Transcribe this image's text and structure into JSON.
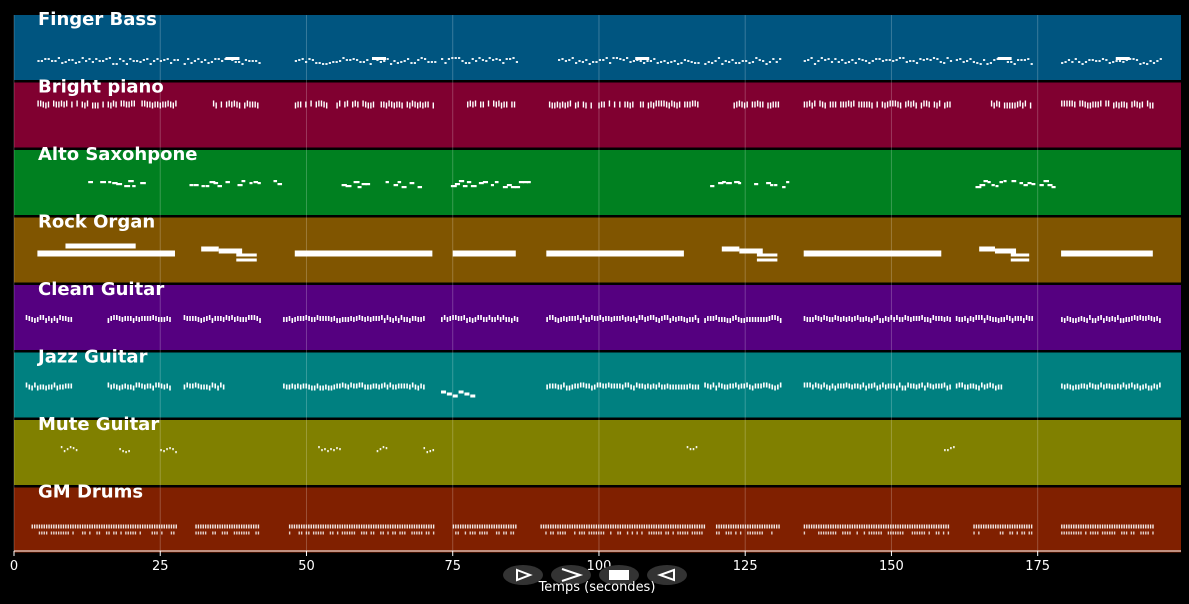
{
  "app": {
    "xlabel": "Temps (secondes)",
    "xlim": [
      0,
      199.5
    ],
    "x_ticks": [
      0,
      25,
      50,
      75,
      100,
      125,
      150,
      175
    ],
    "grid": true,
    "background": "#000000"
  },
  "tracks": [
    {
      "name": "Finger Bass",
      "color": "#005580",
      "pattern": "bass"
    },
    {
      "name": "Bright piano",
      "color": "#800030",
      "pattern": "piano"
    },
    {
      "name": "Alto Saxohpone",
      "color": "#008020",
      "pattern": "sax"
    },
    {
      "name": "Rock Organ",
      "color": "#805500",
      "pattern": "organ"
    },
    {
      "name": "Clean Guitar",
      "color": "#550080",
      "pattern": "guitar"
    },
    {
      "name": "Jazz Guitar",
      "color": "#008080",
      "pattern": "jazz"
    },
    {
      "name": "Mute Guitar",
      "color": "#808000",
      "pattern": "mute"
    },
    {
      "name": "GM Drums",
      "color": "#802000",
      "pattern": "drums"
    }
  ],
  "sections": {
    "bass": [
      [
        4,
        28
      ],
      [
        29,
        42
      ],
      [
        48,
        72
      ],
      [
        73,
        86
      ],
      [
        93,
        117
      ],
      [
        118,
        131
      ],
      [
        135,
        160
      ],
      [
        161,
        174
      ],
      [
        179,
        196
      ]
    ],
    "piano": [
      [
        4,
        28
      ],
      [
        34,
        42
      ],
      [
        48,
        72
      ],
      [
        77,
        86
      ],
      [
        91,
        117
      ],
      [
        123,
        131
      ],
      [
        135,
        160
      ],
      [
        167,
        174
      ],
      [
        179,
        195
      ]
    ],
    "sax": [
      [
        12,
        22
      ],
      [
        30,
        46
      ],
      [
        56,
        69
      ],
      [
        74,
        89
      ],
      [
        119,
        134
      ],
      [
        163,
        178
      ]
    ],
    "organ": [
      [
        4,
        28
      ],
      [
        32,
        42
      ],
      [
        48,
        72
      ],
      [
        75,
        86
      ],
      [
        91,
        115
      ],
      [
        121,
        131
      ],
      [
        135,
        159
      ],
      [
        165,
        174
      ],
      [
        179,
        195
      ]
    ],
    "guitar": [
      [
        2,
        10
      ],
      [
        16,
        27
      ],
      [
        29,
        42
      ],
      [
        46,
        70
      ],
      [
        73,
        86
      ],
      [
        91,
        117
      ],
      [
        118,
        131
      ],
      [
        135,
        160
      ],
      [
        161,
        174
      ],
      [
        179,
        196
      ]
    ],
    "jazz": [
      [
        2,
        10
      ],
      [
        16,
        27
      ],
      [
        29,
        36
      ],
      [
        46,
        70
      ],
      [
        73,
        79
      ],
      [
        91,
        117
      ],
      [
        118,
        131
      ],
      [
        135,
        160
      ],
      [
        161,
        169
      ],
      [
        179,
        196
      ]
    ],
    "mute": [
      [
        8,
        11
      ],
      [
        18,
        20
      ],
      [
        25,
        28
      ],
      [
        52,
        56
      ],
      [
        62,
        64
      ],
      [
        70,
        72
      ],
      [
        115,
        117
      ],
      [
        159,
        161
      ]
    ],
    "drums": [
      [
        3,
        28
      ],
      [
        31,
        42
      ],
      [
        47,
        72
      ],
      [
        75,
        86
      ],
      [
        90,
        118
      ],
      [
        120,
        131
      ],
      [
        135,
        160
      ],
      [
        164,
        174
      ],
      [
        179,
        195
      ]
    ]
  },
  "controls": [
    {
      "name": "play-button",
      "glyph": "play"
    },
    {
      "name": "forward-button",
      "glyph": "forward"
    },
    {
      "name": "stop-button",
      "glyph": "stop"
    },
    {
      "name": "rewind-button",
      "glyph": "rewind"
    }
  ]
}
